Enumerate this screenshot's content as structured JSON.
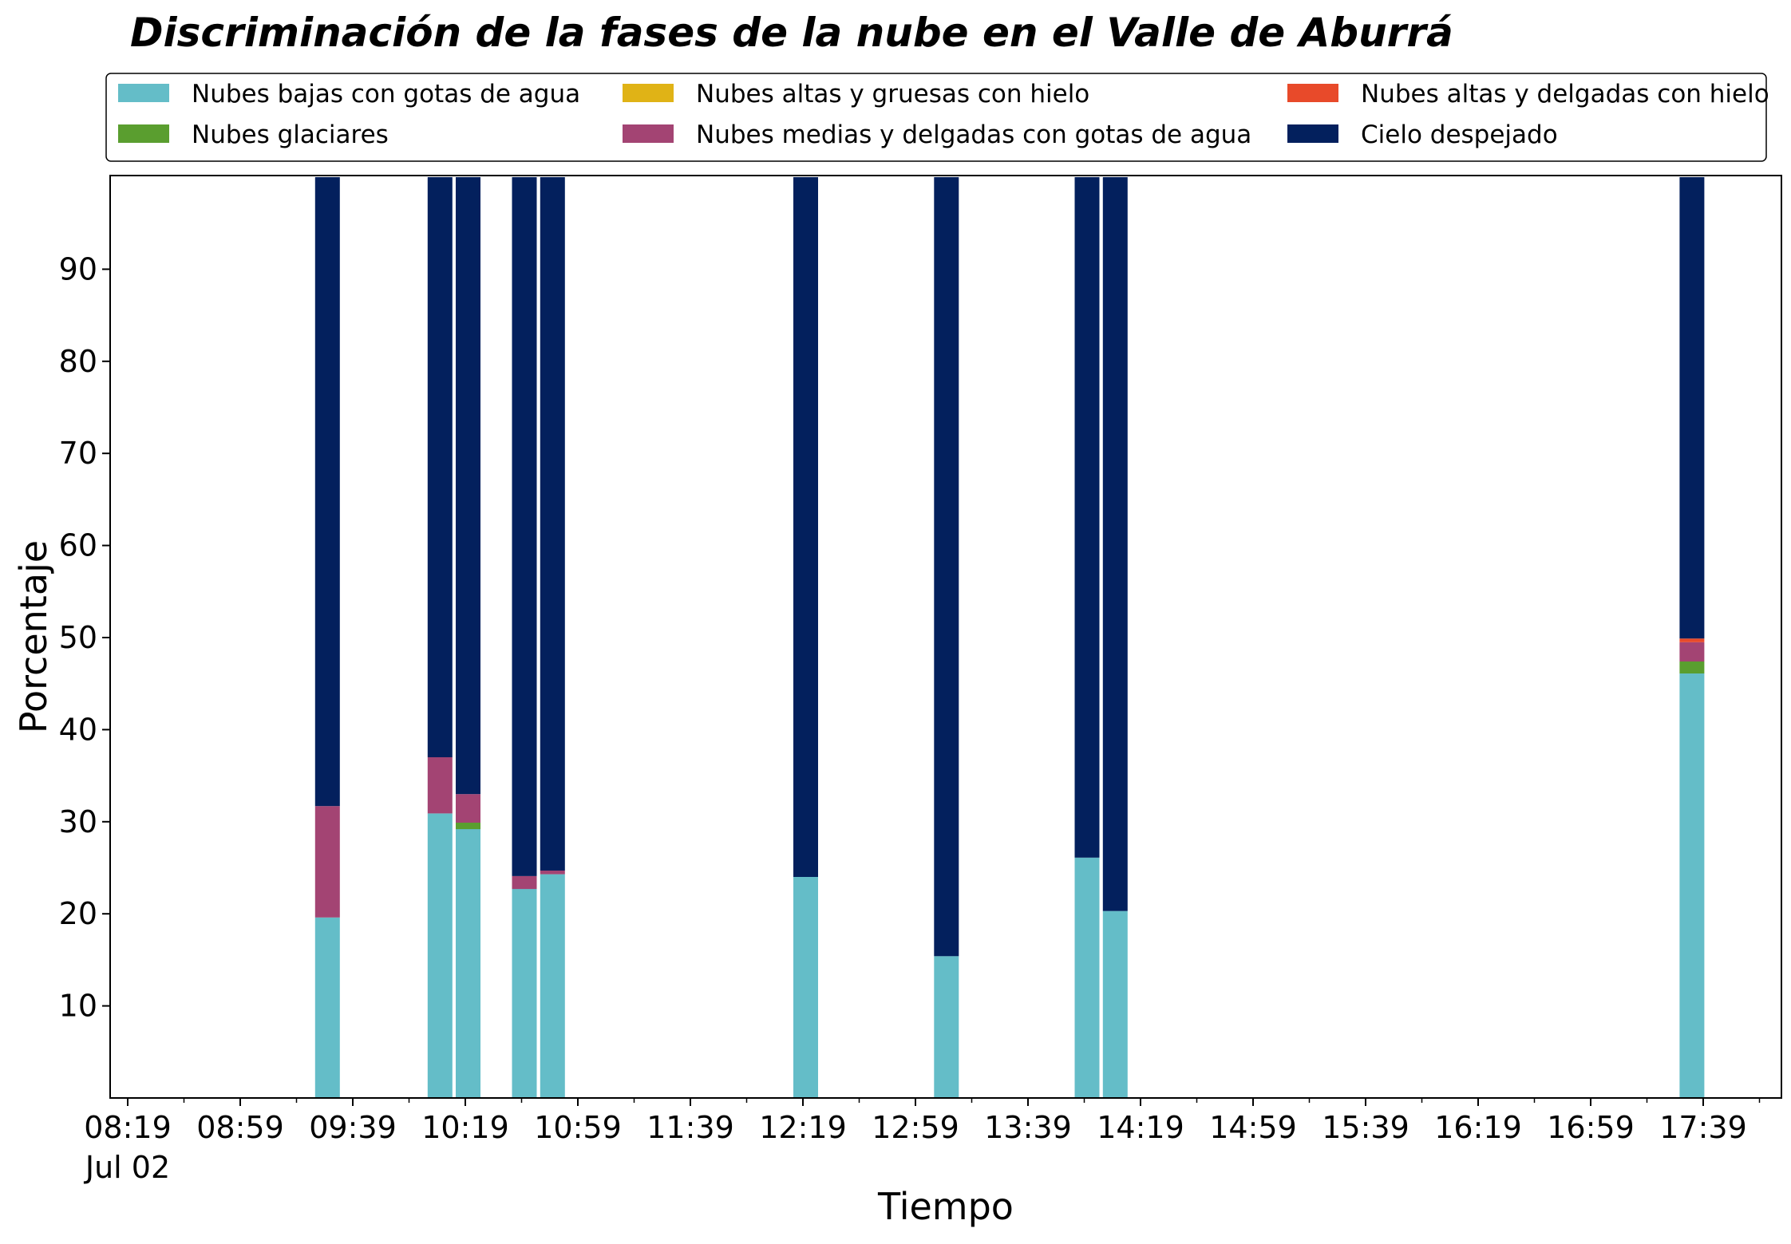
{
  "chart_data": {
    "type": "bar",
    "stacked": true,
    "title": "Discriminación de la fases de la nube en el Valle de Aburrá",
    "xlabel": "Tiempo",
    "ylabel": "Porcentaje",
    "ylim": [
      0,
      100
    ],
    "yticks": [
      10,
      20,
      30,
      40,
      50,
      60,
      70,
      80,
      90
    ],
    "xticks": [
      "08:19",
      "08:59",
      "09:39",
      "10:19",
      "10:59",
      "11:39",
      "12:19",
      "12:59",
      "13:39",
      "14:19",
      "14:59",
      "15:39",
      "16:19",
      "16:59",
      "17:39"
    ],
    "xtick_sublabel": "Jul 02",
    "legend_position": "top",
    "grid": false,
    "categories": [
      "09:30",
      "10:10",
      "10:20",
      "10:40",
      "10:50",
      "12:20",
      "13:10",
      "14:00",
      "14:10",
      "17:35"
    ],
    "series": [
      {
        "name": "Nubes bajas con gotas de agua",
        "color": "#64bdc8",
        "values": [
          19.6,
          30.9,
          29.2,
          22.7,
          24.3,
          24.0,
          15.4,
          26.1,
          20.3,
          46.1
        ]
      },
      {
        "name": "Nubes glaciares",
        "color": "#5a9e2f",
        "values": [
          0,
          0,
          0.7,
          0,
          0,
          0,
          0,
          0,
          0,
          1.3
        ]
      },
      {
        "name": "Nubes altas y gruesas con hielo",
        "color": "#e0b316",
        "values": [
          0,
          0,
          0,
          0,
          0,
          0,
          0,
          0,
          0,
          0
        ]
      },
      {
        "name": "Nubes medias y delgadas con gotas de agua",
        "color": "#a34473",
        "values": [
          12.1,
          6.1,
          3.1,
          1.4,
          0.4,
          0,
          0,
          0,
          0,
          2.1
        ]
      },
      {
        "name": "Nubes altas y delgadas con hielo",
        "color": "#e84a2a",
        "values": [
          0,
          0,
          0,
          0,
          0,
          0,
          0,
          0,
          0,
          0.4
        ]
      },
      {
        "name": "Cielo despejado",
        "color": "#03205d",
        "values": [
          68.3,
          63.0,
          67.0,
          75.9,
          75.3,
          76.0,
          84.6,
          73.9,
          79.7,
          50.1
        ]
      }
    ]
  }
}
